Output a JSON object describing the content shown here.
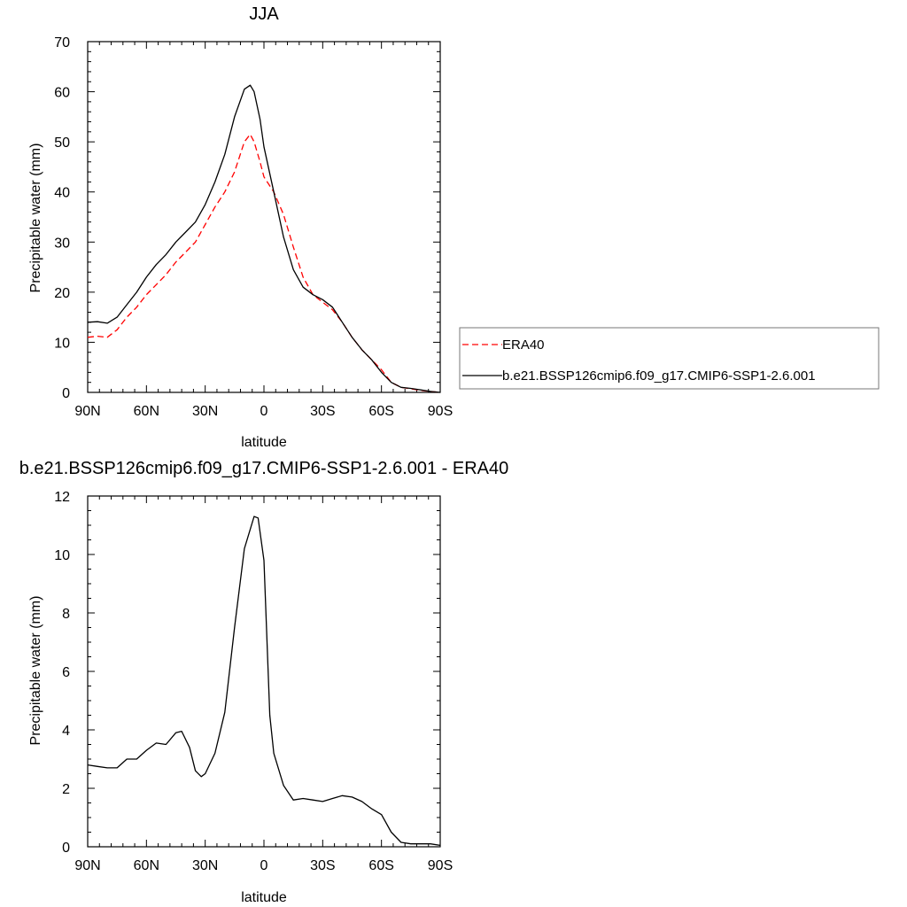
{
  "chart_data": [
    {
      "type": "line",
      "title": "JJA",
      "xlabel": "latitude",
      "ylabel": "Precipitable water (mm)",
      "xlim": [
        90,
        -90
      ],
      "ylim": [
        0,
        70
      ],
      "xticks": [
        {
          "value": 90,
          "label": "90N"
        },
        {
          "value": 60,
          "label": "60N"
        },
        {
          "value": 30,
          "label": "30N"
        },
        {
          "value": 0,
          "label": "0"
        },
        {
          "value": -30,
          "label": "30S"
        },
        {
          "value": -60,
          "label": "60S"
        },
        {
          "value": -90,
          "label": "90S"
        }
      ],
      "yticks": [
        0,
        10,
        20,
        30,
        40,
        50,
        60,
        70
      ],
      "grid": false,
      "legend_placement": "right, outside plot",
      "series": [
        {
          "name": "ERA40",
          "color": "#ff0000",
          "dash": "dashed",
          "x": [
            90,
            85,
            80,
            75,
            70,
            65,
            60,
            55,
            50,
            45,
            40,
            35,
            30,
            25,
            20,
            15,
            10,
            7,
            5,
            2,
            0,
            -5,
            -10,
            -15,
            -20,
            -25,
            -30,
            -35,
            -40,
            -45,
            -50,
            -55,
            -60,
            -65,
            -70,
            -75,
            -80,
            -85,
            -90
          ],
          "values": [
            11,
            11.2,
            11,
            12.5,
            15,
            17,
            19.5,
            21.5,
            23.5,
            26,
            28,
            30,
            33.5,
            37,
            40,
            44,
            50,
            51.5,
            50,
            46,
            43,
            40,
            35.5,
            29,
            23,
            19.5,
            18,
            16.5,
            14,
            11,
            8.5,
            6.5,
            4.5,
            2,
            1,
            0.7,
            0.4,
            0.2,
            0
          ]
        },
        {
          "name": "b.e21.BSSP126cmip6.f09_g17.CMIP6-SSP1-2.6.001",
          "color": "#000000",
          "dash": "solid",
          "x": [
            90,
            85,
            80,
            75,
            70,
            65,
            60,
            55,
            50,
            45,
            40,
            35,
            30,
            25,
            20,
            15,
            10,
            7,
            5,
            2,
            0,
            -5,
            -10,
            -15,
            -20,
            -25,
            -30,
            -35,
            -40,
            -45,
            -50,
            -55,
            -60,
            -65,
            -70,
            -75,
            -80,
            -85,
            -90
          ],
          "values": [
            14,
            14.1,
            13.8,
            15,
            17.5,
            20,
            23,
            25.5,
            27.5,
            30,
            32,
            34,
            37.5,
            42,
            47.5,
            55,
            60.5,
            61.3,
            60,
            54.5,
            49,
            40,
            31,
            24.5,
            21,
            19.5,
            18.5,
            17,
            14,
            11,
            8.5,
            6.5,
            4,
            2,
            1,
            0.8,
            0.5,
            0.2,
            0
          ]
        }
      ]
    },
    {
      "type": "line",
      "title": "b.e21.BSSP126cmip6.f09_g17.CMIP6-SSP1-2.6.001 - ERA40",
      "xlabel": "latitude",
      "ylabel": "Precipitable water (mm)",
      "xlim": [
        90,
        -90
      ],
      "ylim": [
        0,
        12
      ],
      "xticks": [
        {
          "value": 90,
          "label": "90N"
        },
        {
          "value": 60,
          "label": "60N"
        },
        {
          "value": 30,
          "label": "30N"
        },
        {
          "value": 0,
          "label": "0"
        },
        {
          "value": -30,
          "label": "30S"
        },
        {
          "value": -60,
          "label": "60S"
        },
        {
          "value": -90,
          "label": "90S"
        }
      ],
      "yticks": [
        0,
        2,
        4,
        6,
        8,
        10,
        12
      ],
      "grid": false,
      "series": [
        {
          "color": "#000000",
          "dash": "solid",
          "x": [
            90,
            85,
            80,
            75,
            70,
            65,
            60,
            55,
            50,
            45,
            42,
            38,
            35,
            32,
            30,
            25,
            20,
            15,
            10,
            5,
            3,
            0,
            -3,
            -5,
            -10,
            -15,
            -20,
            -25,
            -30,
            -35,
            -40,
            -45,
            -50,
            -55,
            -60,
            -65,
            -70,
            -75,
            -80,
            -85,
            -90
          ],
          "values": [
            2.8,
            2.75,
            2.7,
            2.7,
            3.0,
            3.0,
            3.3,
            3.55,
            3.5,
            3.9,
            3.95,
            3.4,
            2.6,
            2.4,
            2.5,
            3.2,
            4.6,
            7.5,
            10.2,
            11.3,
            11.25,
            9.8,
            4.5,
            3.2,
            2.1,
            1.6,
            1.65,
            1.6,
            1.55,
            1.65,
            1.75,
            1.7,
            1.55,
            1.3,
            1.1,
            0.5,
            0.15,
            0.1,
            0.1,
            0.1,
            0.05
          ]
        }
      ]
    }
  ]
}
